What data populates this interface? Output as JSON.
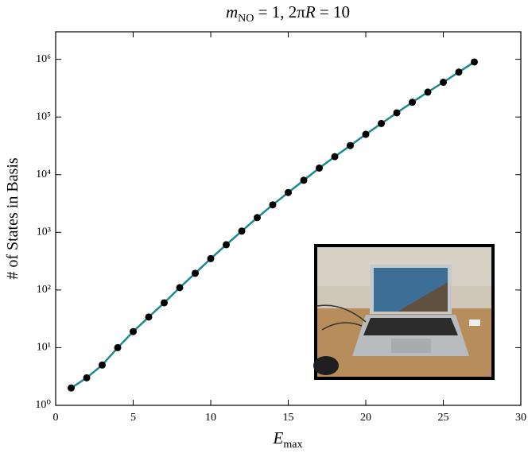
{
  "chart_data": {
    "type": "line",
    "title": [
      "m",
      "NO",
      " = 1,  2π",
      "R",
      " = 10"
    ],
    "x_label": [
      "E",
      "max"
    ],
    "y_label": "# of States in Basis",
    "x": [
      1,
      2,
      3,
      4,
      5,
      6,
      7,
      8,
      9,
      10,
      11,
      12,
      13,
      14,
      15,
      16,
      17,
      18,
      19,
      20,
      21,
      22,
      23,
      24,
      25,
      26,
      27
    ],
    "series": [
      {
        "color": "#1b8a8c",
        "marker_color": "#000000",
        "values": [
          2,
          3,
          5,
          10,
          19,
          34,
          60,
          110,
          195,
          350,
          610,
          1050,
          1800,
          3000,
          4900,
          8000,
          13000,
          20500,
          32000,
          50000,
          77000,
          118000,
          180000,
          270000,
          400000,
          600000,
          900000
        ]
      }
    ],
    "xlim": [
      0,
      30
    ],
    "xticks": [
      0,
      5,
      10,
      15,
      20,
      25,
      30
    ],
    "ylim": [
      1,
      3000000
    ],
    "y_log": true,
    "yticks": [
      {
        "value": 1,
        "label": "10⁰"
      },
      {
        "value": 10,
        "label": "10¹"
      },
      {
        "value": 100,
        "label": "10²"
      },
      {
        "value": 1000,
        "label": "10³"
      },
      {
        "value": 10000,
        "label": "10⁴"
      },
      {
        "value": 100000,
        "label": "10⁵"
      },
      {
        "value": 1000000,
        "label": "10⁶"
      }
    ]
  }
}
